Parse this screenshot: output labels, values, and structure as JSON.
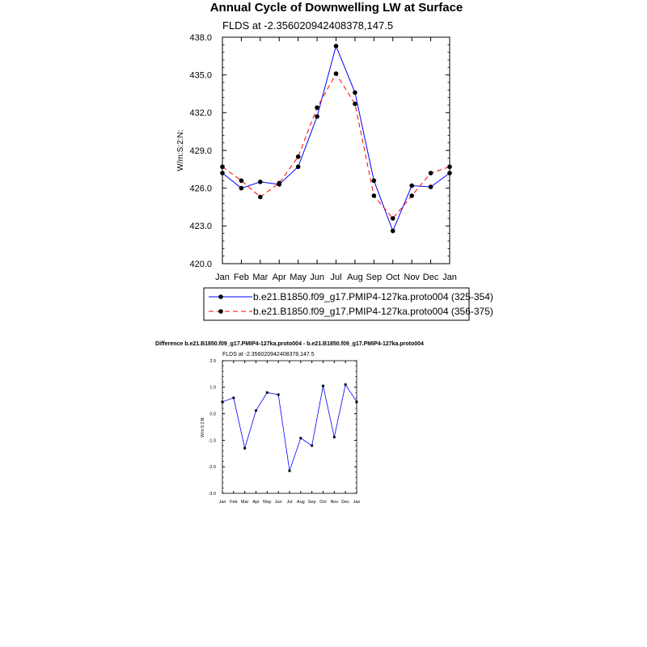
{
  "chart_data": [
    {
      "type": "line",
      "title": "Annual Cycle of Downwelling LW at Surface",
      "subtitle": "FLDS at -2.356020942408378,147.5",
      "ylabel": "W/m:S:2:N:",
      "xlabel": "",
      "categories": [
        "Jan",
        "Feb",
        "Mar",
        "Apr",
        "May",
        "Jun",
        "Jul",
        "Aug",
        "Sep",
        "Oct",
        "Nov",
        "Dec",
        "Jan"
      ],
      "ylim": [
        420.0,
        438.0
      ],
      "yticks": [
        "420.0",
        "423.0",
        "426.0",
        "429.0",
        "432.0",
        "435.0",
        "438.0"
      ],
      "series": [
        {
          "name": "b.e21.B1850.f09_g17.PMIP4-127ka.proto004 (325-354)",
          "color": "#0000ff",
          "dash": "solid",
          "values": [
            427.2,
            426.0,
            426.5,
            426.3,
            427.7,
            431.7,
            437.3,
            433.6,
            426.6,
            422.6,
            426.2,
            426.1,
            427.2
          ]
        },
        {
          "name": "b.e21.B1850.f09_g17.PMIP4-127ka.proto004 (356-375)",
          "color": "#ff0000",
          "dash": "dashed",
          "values": [
            427.7,
            426.6,
            425.3,
            426.4,
            428.5,
            432.4,
            435.1,
            432.7,
            425.4,
            423.6,
            425.4,
            427.2,
            427.7
          ]
        }
      ],
      "legend_position": "below"
    },
    {
      "type": "line",
      "title": "Difference b.e21.B1850.f09_g17.PMIP4-127ka.proto004 - b.e21.B1850.f09_g17.PMIP4-127ka.proto004",
      "subtitle": "FLDS at -2.356020942408378,147.5",
      "ylabel": "W/m:S:2:N:",
      "xlabel": "",
      "categories": [
        "Jan",
        "Feb",
        "Mar",
        "Apr",
        "May",
        "Jun",
        "Jul",
        "Aug",
        "Sep",
        "Oct",
        "Nov",
        "Dec",
        "Jan"
      ],
      "ylim": [
        -3.0,
        2.0
      ],
      "yticks": [
        "-3.0",
        "-2.0",
        "-1.0",
        "0.0",
        "1.0",
        "2.0"
      ],
      "series": [
        {
          "name": "",
          "color": "#0000ff",
          "dash": "solid",
          "values": [
            0.45,
            0.6,
            -1.3,
            0.12,
            0.8,
            0.72,
            -2.15,
            -0.92,
            -1.2,
            1.05,
            -0.88,
            1.1,
            0.45
          ]
        }
      ]
    }
  ]
}
